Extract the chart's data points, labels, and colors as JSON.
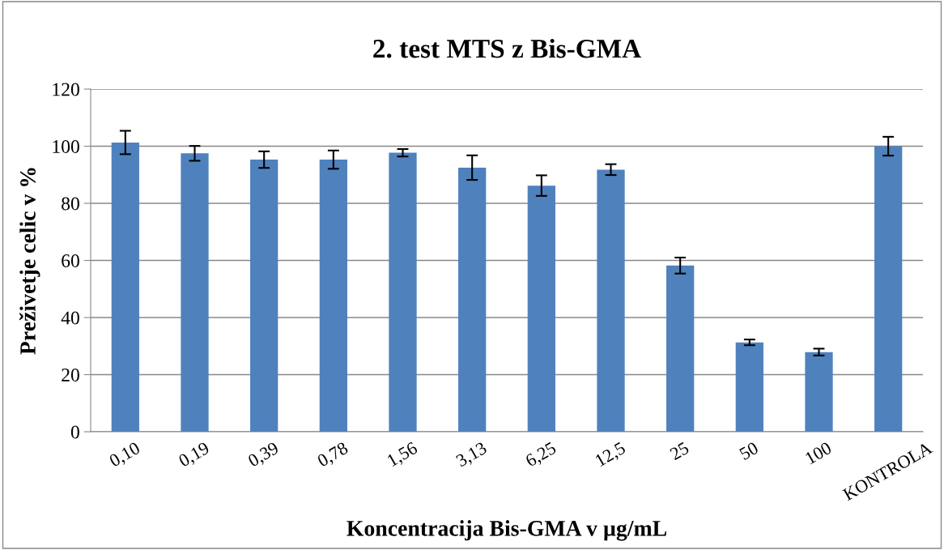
{
  "chart_data": {
    "type": "bar",
    "title": "2. test MTS z Bis-GMA",
    "xlabel": "Koncentracija Bis-GMA v µg/mL",
    "ylabel": "Preživetje celic v %",
    "categories": [
      "0,10",
      "0,19",
      "0,39",
      "0,78",
      "1,56",
      "3,13",
      "6,25",
      "12,5",
      "25",
      "50",
      "100",
      "KONTROLA"
    ],
    "values": [
      101.3,
      97.5,
      95.3,
      95.3,
      97.7,
      92.5,
      86.2,
      91.8,
      58.2,
      31.3,
      27.9,
      100
    ],
    "errors": [
      4.1,
      2.6,
      2.9,
      3.2,
      1.3,
      4.3,
      3.6,
      1.9,
      2.8,
      1.0,
      1.2,
      3.3
    ],
    "color": "#4f81bd",
    "ylim": [
      0,
      120
    ],
    "yticks": [
      0,
      20,
      40,
      60,
      80,
      100,
      120
    ],
    "grid": "y",
    "legend": false
  }
}
